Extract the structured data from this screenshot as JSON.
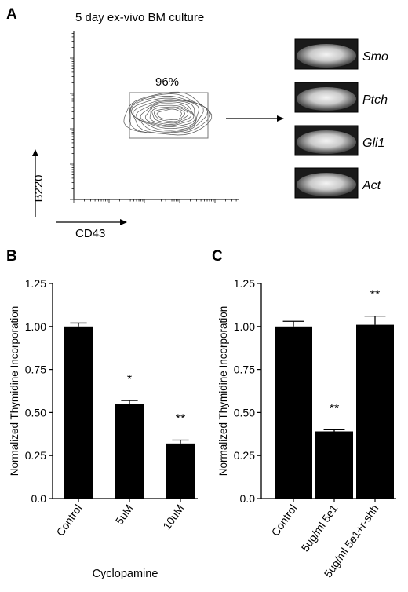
{
  "panel_a": {
    "label": "A",
    "title": "5 day ex-vivo BM culture",
    "gate_percent": "96%",
    "x_label": "CD43",
    "y_label": "B220",
    "gels": [
      {
        "gene": "Smo"
      },
      {
        "gene": "Ptch"
      },
      {
        "gene": "Gli1"
      },
      {
        "gene": "Act"
      }
    ]
  },
  "chart_data": [
    {
      "panel": "B",
      "type": "bar",
      "categories": [
        "Control",
        "5uM",
        "10uM"
      ],
      "values": [
        1.0,
        0.55,
        0.32
      ],
      "errors": [
        0.02,
        0.02,
        0.02
      ],
      "significance": [
        "",
        "*",
        "**"
      ],
      "xlabel": "Cyclopamine",
      "ylabel": "Normalized Thymidine Incorporation",
      "ylim": [
        0,
        1.25
      ],
      "yticks": [
        "0.0",
        "0.25",
        "0.50",
        "0.75",
        "1.00",
        "1.25"
      ]
    },
    {
      "panel": "C",
      "type": "bar",
      "categories": [
        "Control",
        "5ug/ml 5e1",
        "5ug/ml 5e1+r-shh"
      ],
      "values": [
        1.0,
        0.39,
        1.01
      ],
      "errors": [
        0.03,
        0.01,
        0.05
      ],
      "significance": [
        "",
        "**",
        "**"
      ],
      "xlabel": "",
      "ylabel": "Normalized Thymidine Incorporation",
      "ylim": [
        0,
        1.25
      ],
      "yticks": [
        "0.0",
        "0.25",
        "0.50",
        "0.75",
        "1.00",
        "1.25"
      ]
    }
  ]
}
